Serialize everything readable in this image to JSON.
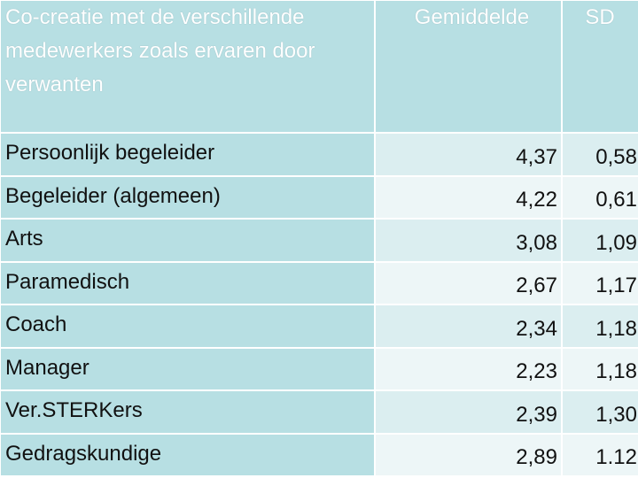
{
  "table": {
    "headers": {
      "label": "Co-creatie met de verschillende medewerkers zoals ervaren door verwanten",
      "mean": "Gemiddelde",
      "sd": "SD"
    },
    "rows": [
      {
        "label": "Persoonlijk begeleider",
        "mean": "4,37",
        "sd": "0,58"
      },
      {
        "label": "Begeleider (algemeen)",
        "mean": "4,22",
        "sd": "0,61"
      },
      {
        "label": "Arts",
        "mean": "3,08",
        "sd": "1,09"
      },
      {
        "label": "Paramedisch",
        "mean": "2,67",
        "sd": "1,17"
      },
      {
        "label": "Coach",
        "mean": "2,34",
        "sd": "1,18"
      },
      {
        "label": "Manager",
        "mean": "2,23",
        "sd": "1,18"
      },
      {
        "label": "Ver.STERKers",
        "mean": "2,39",
        "sd": "1,30"
      },
      {
        "label": "Gedragskundige",
        "mean": "2,89",
        "sd": "1.12"
      }
    ]
  },
  "colors": {
    "header_bg": "#b7dfe3",
    "row_dark": "#dbeef0",
    "row_light": "#edf6f7",
    "header_text": "#ffffff"
  }
}
